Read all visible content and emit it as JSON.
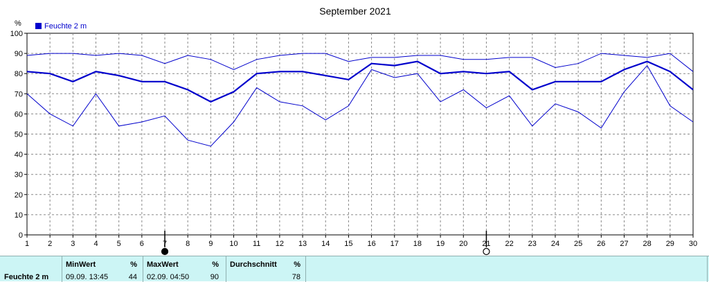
{
  "chart_data": {
    "type": "line",
    "title": "September 2021",
    "ylabel": "%",
    "ylim": [
      0,
      100
    ],
    "yticks": [
      "0",
      "10",
      "20",
      "30",
      "40",
      "50",
      "60",
      "70",
      "80",
      "90",
      "100"
    ],
    "x": [
      "1",
      "2",
      "3",
      "4",
      "5",
      "6",
      "7",
      "8",
      "9",
      "10",
      "11",
      "12",
      "13",
      "14",
      "15",
      "16",
      "17",
      "18",
      "19",
      "20",
      "21",
      "22",
      "23",
      "24",
      "25",
      "26",
      "27",
      "28",
      "29",
      "30"
    ],
    "grid": true,
    "legend_position": "top-left",
    "legend": "Feuchte  2 m",
    "series": [
      {
        "name": "Feuchte  2 m",
        "role": "max",
        "values": [
          89,
          90,
          90,
          89,
          90,
          89,
          85,
          89,
          87,
          82,
          87,
          89,
          90,
          90,
          86,
          88,
          88,
          89,
          89,
          87,
          87,
          88,
          88,
          83,
          85,
          90,
          89,
          88,
          90,
          81
        ]
      },
      {
        "name": "Feuchte  2 m",
        "role": "mean",
        "values": [
          81,
          80,
          76,
          81,
          79,
          76,
          76,
          72,
          66,
          71,
          80,
          81,
          81,
          79,
          77,
          85,
          84,
          86,
          80,
          81,
          80,
          81,
          72,
          76,
          76,
          76,
          82,
          86,
          81,
          72
        ]
      },
      {
        "name": "Feuchte  2 m",
        "role": "min",
        "values": [
          70,
          60,
          54,
          70,
          54,
          56,
          59,
          47,
          44,
          56,
          73,
          66,
          64,
          57,
          64,
          82,
          78,
          80,
          66,
          72,
          63,
          69,
          54,
          65,
          61,
          53,
          71,
          84,
          64,
          56
        ]
      }
    ],
    "moon_markers": [
      {
        "day": 7,
        "phase": "new"
      },
      {
        "day": 21,
        "phase": "full"
      }
    ],
    "colors": {
      "line": "#0000cc",
      "grid": "#888888"
    }
  },
  "stats": {
    "row_label": "Feuchte  2 m",
    "min_header": "MinWert",
    "min_unit": "%",
    "min_time": "09.09.  13:45",
    "min_value": "44",
    "max_header": "MaxWert",
    "max_unit": "%",
    "max_time": "02.09.  04:50",
    "max_value": "90",
    "avg_header": "Durchschnitt",
    "avg_unit": "%",
    "avg_value": "78"
  }
}
